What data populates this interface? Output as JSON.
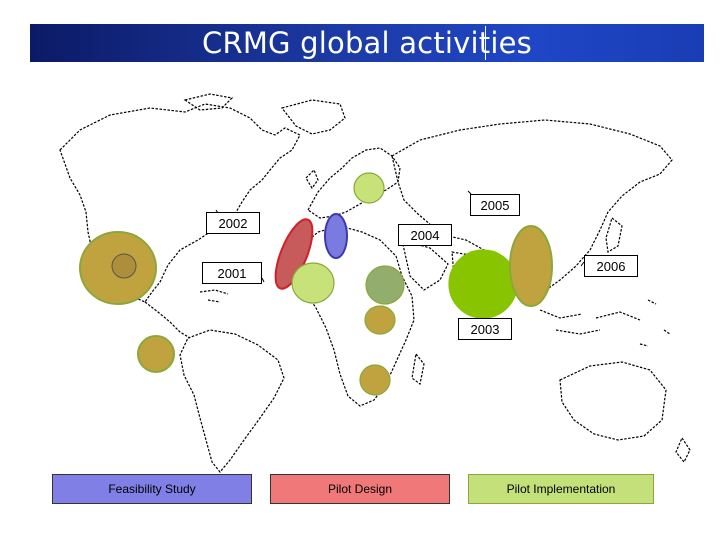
{
  "title": "CRMG global activities",
  "years": {
    "y2001": "2001",
    "y2002": "2002",
    "y2003": "2003",
    "y2004": "2004",
    "y2005": "2005",
    "y2006": "2006"
  },
  "legend": [
    {
      "label": "Feasibility Study",
      "color": "#7f7fe6"
    },
    {
      "label": "Pilot Design",
      "color": "#f07878"
    },
    {
      "label": "Pilot Implementation",
      "color": "#c4e07a"
    }
  ],
  "colors": {
    "implementation_light": "#c8e27a",
    "implementation_dark": "#88c400",
    "mixed_olive": "#c0a33e",
    "design": "#d64a58",
    "feasibility": "#7a7adf"
  }
}
